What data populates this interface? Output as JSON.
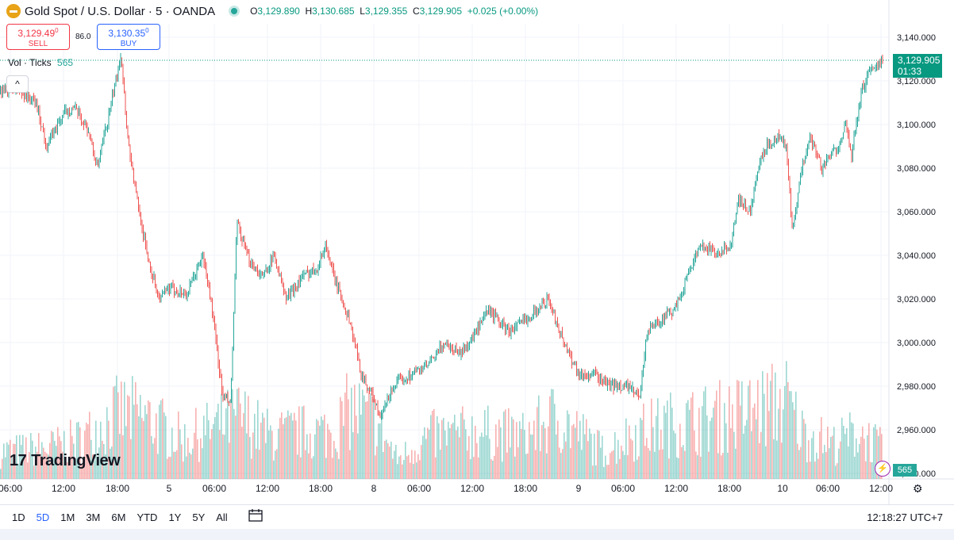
{
  "header": {
    "symbol": "Gold Spot / U.S. Dollar · 5 · OANDA",
    "open_label": "O",
    "open": "3,129.890",
    "high_label": "H",
    "high": "3,130.685",
    "low_label": "L",
    "low": "3,129.355",
    "close_label": "C",
    "close": "3,129.905",
    "change": "+0.025 (+0.00%)"
  },
  "trade": {
    "sell_price": "3,129.49",
    "sell_price_sup": "0",
    "sell_label": "SELL",
    "spread": "86.0",
    "buy_price": "3,130.35",
    "buy_price_sup": "0",
    "buy_label": "BUY"
  },
  "volume_legend": {
    "label": "Vol · Ticks",
    "value": "565"
  },
  "collapse_glyph": "^",
  "watermark": {
    "icon": "17",
    "text": "TradingView"
  },
  "last_price_tag": {
    "price": "3,129.905",
    "countdown": "01:33"
  },
  "volume_tag": "565",
  "flash_glyph": "⚡",
  "gear_glyph": "⚙",
  "ranges": [
    "1D",
    "5D",
    "1M",
    "3M",
    "6M",
    "YTD",
    "1Y",
    "5Y",
    "All"
  ],
  "active_range": "5D",
  "calendar_glyph": "📅",
  "clock": "12:18:27 UTC+7",
  "colors": {
    "up": "#26a69a",
    "down": "#ef5350",
    "accent": "#2962ff",
    "last": "#089981"
  },
  "chart_data": {
    "type": "candlestick",
    "y_ticks": [
      "3,140.000",
      "3,120.000",
      "3,100.000",
      "3,080.000",
      "3,060.000",
      "3,040.000",
      "3,020.000",
      "3,000.000",
      "2,980.000",
      "2,960.000",
      "2,940.000"
    ],
    "ylim": [
      2940,
      3145
    ],
    "x_ticks": [
      "06:00",
      "12:00",
      "18:00",
      "5",
      "06:00",
      "12:00",
      "18:00",
      "8",
      "06:00",
      "12:00",
      "18:00",
      "9",
      "06:00",
      "12:00",
      "18:00",
      "10",
      "06:00",
      "12:00"
    ],
    "last_price": 3129.905,
    "price_path": [
      [
        0,
        3115
      ],
      [
        20,
        3116
      ],
      [
        45,
        3110
      ],
      [
        58,
        3090
      ],
      [
        80,
        3105
      ],
      [
        92,
        3108
      ],
      [
        110,
        3098
      ],
      [
        122,
        3080
      ],
      [
        140,
        3110
      ],
      [
        148,
        3125
      ],
      [
        152,
        3133
      ],
      [
        160,
        3095
      ],
      [
        170,
        3070
      ],
      [
        185,
        3040
      ],
      [
        200,
        3020
      ],
      [
        215,
        3025
      ],
      [
        235,
        3022
      ],
      [
        255,
        3040
      ],
      [
        265,
        3020
      ],
      [
        280,
        2975
      ],
      [
        290,
        2972
      ],
      [
        298,
        3055
      ],
      [
        310,
        3040
      ],
      [
        330,
        3030
      ],
      [
        345,
        3040
      ],
      [
        360,
        3020
      ],
      [
        380,
        3030
      ],
      [
        400,
        3035
      ],
      [
        410,
        3045
      ],
      [
        420,
        3030
      ],
      [
        440,
        3010
      ],
      [
        455,
        2985
      ],
      [
        470,
        2975
      ],
      [
        478,
        2965
      ],
      [
        495,
        2980
      ],
      [
        515,
        2985
      ],
      [
        540,
        2990
      ],
      [
        560,
        3000
      ],
      [
        580,
        2995
      ],
      [
        600,
        3005
      ],
      [
        615,
        3015
      ],
      [
        640,
        3005
      ],
      [
        660,
        3010
      ],
      [
        690,
        3020
      ],
      [
        710,
        3000
      ],
      [
        730,
        2985
      ],
      [
        750,
        2985
      ],
      [
        770,
        2980
      ],
      [
        790,
        2980
      ],
      [
        805,
        2975
      ],
      [
        815,
        3005
      ],
      [
        830,
        3010
      ],
      [
        850,
        3015
      ],
      [
        870,
        3035
      ],
      [
        885,
        3045
      ],
      [
        905,
        3040
      ],
      [
        920,
        3045
      ],
      [
        930,
        3065
      ],
      [
        945,
        3060
      ],
      [
        955,
        3080
      ],
      [
        965,
        3090
      ],
      [
        980,
        3095
      ],
      [
        990,
        3090
      ],
      [
        998,
        3050
      ],
      [
        1010,
        3080
      ],
      [
        1020,
        3095
      ],
      [
        1035,
        3080
      ],
      [
        1055,
        3090
      ],
      [
        1065,
        3100
      ],
      [
        1072,
        3085
      ],
      [
        1085,
        3115
      ],
      [
        1095,
        3125
      ],
      [
        1112,
        3130
      ]
    ],
    "volume_shape": [
      [
        0,
        0.35
      ],
      [
        60,
        0.4
      ],
      [
        100,
        0.5
      ],
      [
        150,
        0.85
      ],
      [
        180,
        0.8
      ],
      [
        230,
        0.5
      ],
      [
        280,
        0.7
      ],
      [
        300,
        0.8
      ],
      [
        340,
        0.55
      ],
      [
        380,
        0.6
      ],
      [
        420,
        0.6
      ],
      [
        440,
        0.9
      ],
      [
        470,
        0.75
      ],
      [
        500,
        0.25
      ],
      [
        540,
        0.55
      ],
      [
        600,
        0.6
      ],
      [
        660,
        0.55
      ],
      [
        700,
        0.8
      ],
      [
        740,
        0.5
      ],
      [
        760,
        0.35
      ],
      [
        800,
        0.6
      ],
      [
        840,
        0.7
      ],
      [
        880,
        0.75
      ],
      [
        940,
        0.85
      ],
      [
        990,
        1.0
      ],
      [
        1010,
        0.6
      ],
      [
        1050,
        0.45
      ],
      [
        1080,
        0.6
      ],
      [
        1110,
        0.4
      ]
    ]
  }
}
